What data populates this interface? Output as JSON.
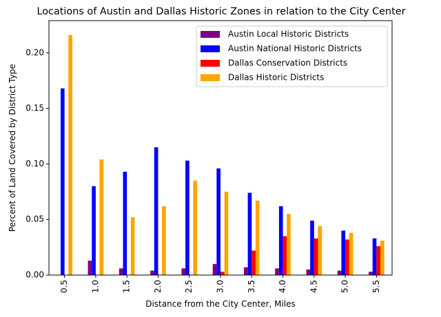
{
  "chart_data": {
    "type": "bar",
    "title": "Locations of Austin and Dallas Historic Zones in relation to the City Center",
    "xlabel": "Distance from the City Center, Miles",
    "ylabel": "Percent of Land Covered by District Type",
    "categories": [
      "0.5",
      "1.0",
      "1.5",
      "2.0",
      "2.5",
      "3.0",
      "3.5",
      "4.0",
      "4.5",
      "5.0",
      "5.5"
    ],
    "ylim": [
      0,
      0.229
    ],
    "yticks": [
      "0.00",
      "0.05",
      "0.10",
      "0.15",
      "0.20"
    ],
    "ytick_values": [
      0,
      0.05,
      0.1,
      0.15,
      0.2
    ],
    "grid": false,
    "legend_position": "top-right",
    "series": [
      {
        "name": "Austin Local Historic Districts",
        "color": "#800080",
        "values": [
          0.0,
          0.013,
          0.006,
          0.004,
          0.006,
          0.01,
          0.007,
          0.006,
          0.005,
          0.004,
          0.003
        ]
      },
      {
        "name": "Austin National Historic Districts",
        "color": "#0000ff",
        "values": [
          0.168,
          0.08,
          0.093,
          0.115,
          0.103,
          0.096,
          0.074,
          0.062,
          0.049,
          0.04,
          0.033
        ]
      },
      {
        "name": "Dallas Conservation Districts",
        "color": "#ff0000",
        "values": [
          0.0,
          0.0,
          0.0,
          0.0,
          0.0,
          0.003,
          0.022,
          0.035,
          0.033,
          0.032,
          0.026
        ]
      },
      {
        "name": "Dallas Historic Districts",
        "color": "#ffa500",
        "values": [
          0.216,
          0.104,
          0.052,
          0.062,
          0.085,
          0.075,
          0.067,
          0.055,
          0.044,
          0.038,
          0.031
        ]
      }
    ]
  }
}
